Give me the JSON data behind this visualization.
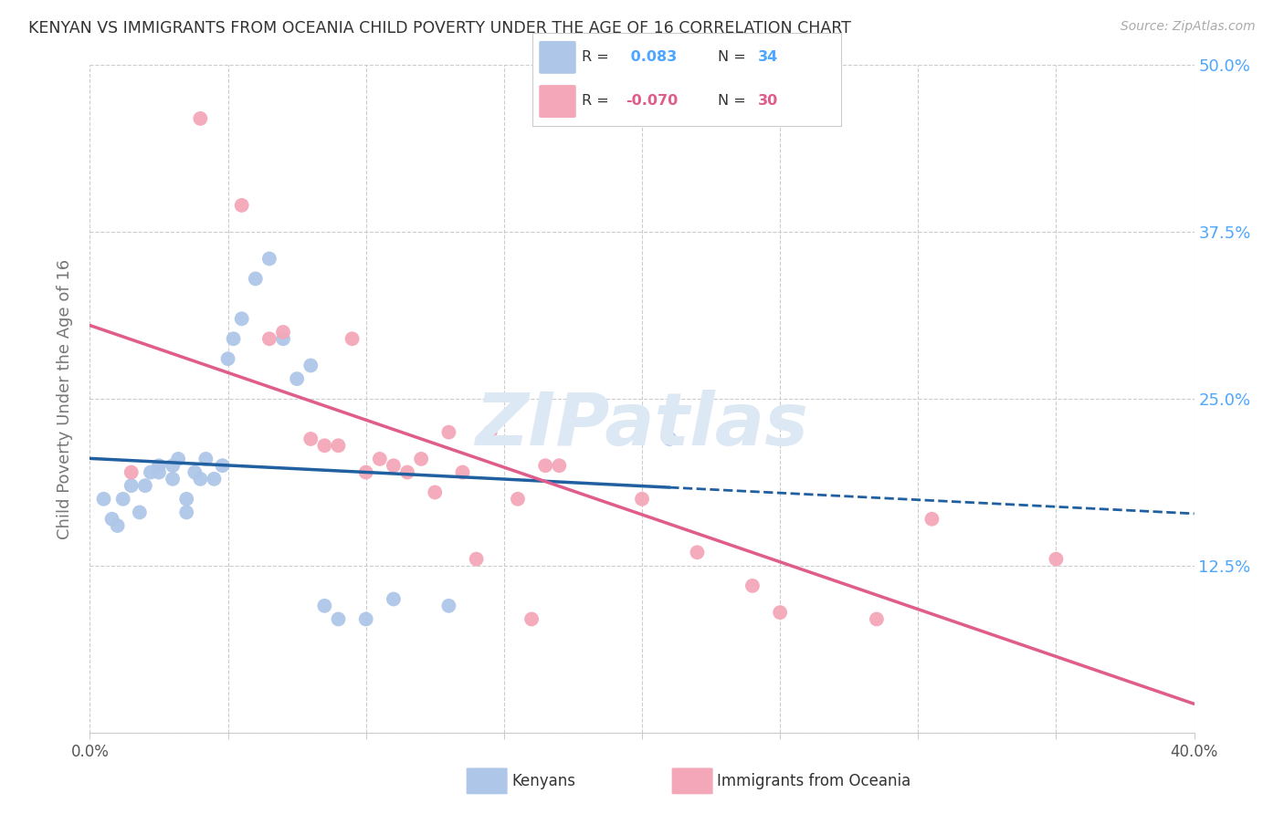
{
  "title": "KENYAN VS IMMIGRANTS FROM OCEANIA CHILD POVERTY UNDER THE AGE OF 16 CORRELATION CHART",
  "source": "Source: ZipAtlas.com",
  "ylabel": "Child Poverty Under the Age of 16",
  "xlim": [
    0.0,
    0.4
  ],
  "ylim": [
    0.0,
    0.5
  ],
  "xticks": [
    0.0,
    0.05,
    0.1,
    0.15,
    0.2,
    0.25,
    0.3,
    0.35,
    0.4
  ],
  "xticklabels": [
    "0.0%",
    "",
    "",
    "",
    "",
    "",
    "",
    "",
    "40.0%"
  ],
  "yticks": [
    0.0,
    0.125,
    0.25,
    0.375,
    0.5
  ],
  "yticklabels": [
    "",
    "12.5%",
    "25.0%",
    "37.5%",
    "50.0%"
  ],
  "kenyan_x": [
    0.005,
    0.008,
    0.01,
    0.012,
    0.015,
    0.018,
    0.02,
    0.022,
    0.025,
    0.025,
    0.03,
    0.03,
    0.032,
    0.035,
    0.035,
    0.038,
    0.04,
    0.042,
    0.045,
    0.048,
    0.05,
    0.052,
    0.055,
    0.06,
    0.065,
    0.07,
    0.075,
    0.08,
    0.085,
    0.09,
    0.1,
    0.11,
    0.13,
    0.21
  ],
  "kenyan_y": [
    0.175,
    0.16,
    0.155,
    0.175,
    0.185,
    0.165,
    0.185,
    0.195,
    0.195,
    0.2,
    0.19,
    0.2,
    0.205,
    0.165,
    0.175,
    0.195,
    0.19,
    0.205,
    0.19,
    0.2,
    0.28,
    0.295,
    0.31,
    0.34,
    0.355,
    0.295,
    0.265,
    0.275,
    0.095,
    0.085,
    0.085,
    0.1,
    0.095,
    0.22
  ],
  "oceania_x": [
    0.015,
    0.04,
    0.055,
    0.065,
    0.07,
    0.08,
    0.085,
    0.09,
    0.095,
    0.1,
    0.105,
    0.11,
    0.115,
    0.12,
    0.125,
    0.13,
    0.135,
    0.14,
    0.145,
    0.155,
    0.16,
    0.165,
    0.17,
    0.2,
    0.22,
    0.24,
    0.25,
    0.285,
    0.305,
    0.35
  ],
  "oceania_y": [
    0.195,
    0.46,
    0.395,
    0.295,
    0.3,
    0.22,
    0.215,
    0.215,
    0.295,
    0.195,
    0.205,
    0.2,
    0.195,
    0.205,
    0.18,
    0.225,
    0.195,
    0.13,
    0.225,
    0.175,
    0.085,
    0.2,
    0.2,
    0.175,
    0.135,
    0.11,
    0.09,
    0.085,
    0.16,
    0.13
  ],
  "kenyan_color": "#aec6e8",
  "oceania_color": "#f4a7b9",
  "kenyan_line_color": "#2060a0",
  "oceania_line_color": "#e05c8a",
  "grid_color": "#cccccc",
  "title_color": "#333333",
  "axis_label_color": "#777777",
  "ytick_color": "#4da6ff",
  "background_color": "#ffffff",
  "watermark_color": "#dde8f5"
}
